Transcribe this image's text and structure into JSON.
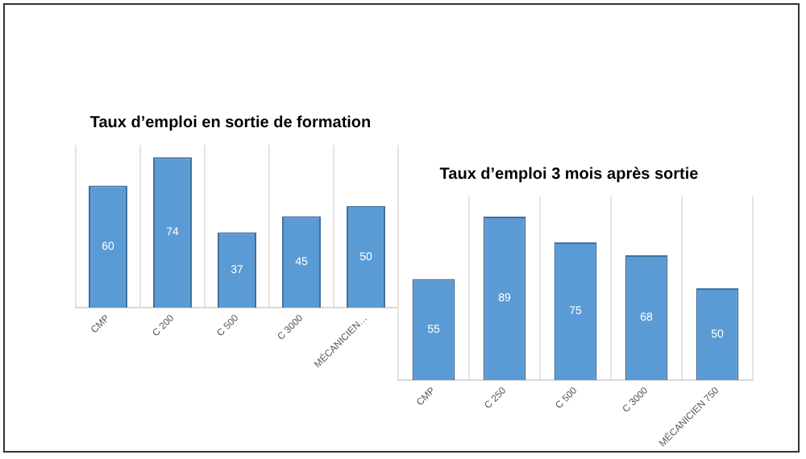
{
  "chart_data": [
    {
      "type": "bar",
      "title": "Taux d’emploi en sortie de formation",
      "categories": [
        "CMP",
        "C 200",
        "C 500",
        "C 3000",
        "MÉCANICIEN…"
      ],
      "values": [
        60,
        74,
        37,
        45,
        50
      ],
      "color": "#5b9bd5",
      "data_labels": true,
      "relative": false,
      "grid": "x",
      "legend": false
    },
    {
      "type": "bar",
      "title": "Taux d’emploi 3 mois après sortie",
      "categories": [
        "CMP",
        "C 250",
        "C 500",
        "C 3000",
        "MÉCANICIEN 750"
      ],
      "values": [
        55,
        89,
        75,
        68,
        50
      ],
      "color": "#5b9bd5",
      "data_labels": true,
      "relative": false,
      "grid": "x",
      "legend": false
    }
  ]
}
